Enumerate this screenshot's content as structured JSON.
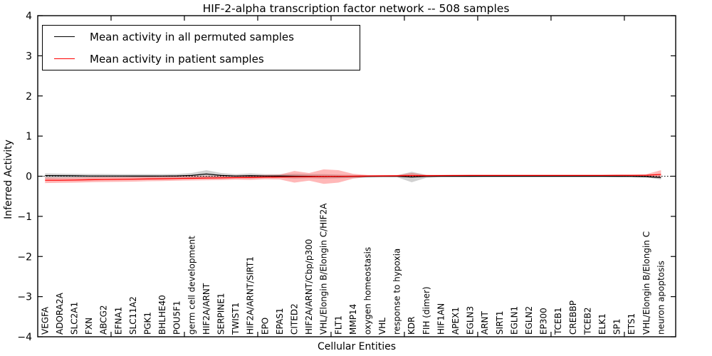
{
  "figure": {
    "background": "#ffffff",
    "frame_color": "#000000"
  },
  "chart_data": {
    "type": "line",
    "title": "HIF-2-alpha transcription factor network -- 508 samples",
    "xlabel": "Cellular Entities",
    "ylabel": "Inferred Activity",
    "ylim": [
      -4,
      4
    ],
    "yticks": [
      -4,
      -3,
      -2,
      -1,
      0,
      1,
      2,
      3,
      4
    ],
    "xticks_major_every": 5,
    "grid": false,
    "zero_line": "dotted",
    "legend_position": "upper left",
    "categories": [
      "VEGFA",
      "ADORA2A",
      "SLC2A1",
      "FXN",
      "ABCG2",
      "EFNA1",
      "SLC11A2",
      "PGK1",
      "BHLHE40",
      "POU5F1",
      "germ cell development",
      "HIF2A/ARNT",
      "SERPINE1",
      "TWIST1",
      "HIF2A/ARNT/SIRT1",
      "EPO",
      "EPAS1",
      "CITED2",
      "HIF2A/ARNT/Cbp/p300",
      "VHL/Elongin B/Elongin C/HIF2A",
      "FLT1",
      "MMP14",
      "oxygen homeostasis",
      "VHL",
      "response to hypoxia",
      "KDR",
      "FIH (dimer)",
      "HIF1AN",
      "APEX1",
      "EGLN3",
      "ARNT",
      "SIRT1",
      "EGLN1",
      "EGLN2",
      "EP300",
      "TCEB1",
      "CREBBP",
      "TCEB2",
      "ELK1",
      "SP1",
      "ETS1",
      "VHL/Elongin B/Elongin C",
      "neuron apoptosis"
    ],
    "series": [
      {
        "name": "Mean activity in all permuted samples",
        "color": "#000000",
        "band_color": "rgba(0,0,0,0.18)",
        "values": [
          0.015,
          0.012,
          0.01,
          0.005,
          0.005,
          0.005,
          0.003,
          0.003,
          0.005,
          0.008,
          0.02,
          0.055,
          0.02,
          0.005,
          0.012,
          0.005,
          0.003,
          0.0,
          -0.003,
          -0.008,
          -0.008,
          -0.005,
          -0.003,
          -0.002,
          -0.002,
          -0.02,
          -0.005,
          -0.002,
          -0.002,
          -0.002,
          -0.002,
          -0.002,
          -0.002,
          -0.002,
          -0.002,
          -0.002,
          -0.002,
          -0.002,
          -0.002,
          -0.003,
          -0.005,
          -0.01,
          -0.035
        ],
        "band_hi": [
          0.07,
          0.065,
          0.06,
          0.055,
          0.055,
          0.05,
          0.05,
          0.05,
          0.05,
          0.055,
          0.08,
          0.15,
          0.08,
          0.05,
          0.07,
          0.05,
          0.05,
          0.06,
          0.05,
          0.05,
          0.04,
          0.03,
          0.025,
          0.02,
          0.02,
          0.11,
          0.03,
          0.02,
          0.015,
          0.015,
          0.015,
          0.015,
          0.015,
          0.015,
          0.015,
          0.015,
          0.015,
          0.015,
          0.015,
          0.015,
          0.02,
          0.02,
          0.01
        ],
        "band_lo": [
          -0.06,
          -0.055,
          -0.05,
          -0.05,
          -0.045,
          -0.045,
          -0.045,
          -0.04,
          -0.04,
          -0.04,
          -0.04,
          -0.05,
          -0.04,
          -0.045,
          -0.05,
          -0.04,
          -0.04,
          -0.06,
          -0.05,
          -0.06,
          -0.05,
          -0.04,
          -0.03,
          -0.025,
          -0.025,
          -0.15,
          -0.04,
          -0.02,
          -0.02,
          -0.02,
          -0.015,
          -0.015,
          -0.015,
          -0.015,
          -0.015,
          -0.015,
          -0.015,
          -0.015,
          -0.015,
          -0.015,
          -0.02,
          -0.03,
          -0.08
        ]
      },
      {
        "name": "Mean activity in patient samples",
        "color": "#ff0000",
        "band_color": "rgba(255,0,0,0.28)",
        "values": [
          -0.1,
          -0.1,
          -0.095,
          -0.088,
          -0.082,
          -0.078,
          -0.073,
          -0.068,
          -0.063,
          -0.057,
          -0.052,
          -0.046,
          -0.042,
          -0.035,
          -0.032,
          -0.025,
          -0.02,
          -0.015,
          -0.012,
          -0.008,
          -0.005,
          0.0,
          0.005,
          0.008,
          0.01,
          0.015,
          0.012,
          0.015,
          0.018,
          0.02,
          0.02,
          0.02,
          0.02,
          0.02,
          0.02,
          0.02,
          0.02,
          0.02,
          0.02,
          0.022,
          0.022,
          0.025,
          0.045
        ],
        "band_hi": [
          -0.03,
          -0.035,
          -0.03,
          -0.025,
          -0.02,
          -0.02,
          -0.015,
          -0.01,
          -0.01,
          -0.005,
          0.0,
          0.01,
          0.01,
          0.02,
          0.025,
          0.03,
          0.04,
          0.13,
          0.08,
          0.17,
          0.15,
          0.06,
          0.03,
          0.03,
          0.03,
          0.08,
          0.035,
          0.035,
          0.035,
          0.035,
          0.035,
          0.035,
          0.035,
          0.035,
          0.035,
          0.035,
          0.035,
          0.035,
          0.035,
          0.04,
          0.04,
          0.05,
          0.15
        ],
        "band_lo": [
          -0.17,
          -0.165,
          -0.16,
          -0.15,
          -0.145,
          -0.14,
          -0.135,
          -0.125,
          -0.12,
          -0.11,
          -0.105,
          -0.1,
          -0.095,
          -0.085,
          -0.09,
          -0.075,
          -0.08,
          -0.16,
          -0.11,
          -0.19,
          -0.16,
          -0.06,
          -0.02,
          -0.01,
          -0.01,
          -0.02,
          -0.01,
          0.0,
          0.005,
          0.005,
          0.005,
          0.005,
          0.005,
          0.005,
          0.005,
          0.005,
          0.005,
          0.005,
          0.005,
          0.005,
          0.0,
          0.0,
          -0.02
        ]
      }
    ]
  }
}
